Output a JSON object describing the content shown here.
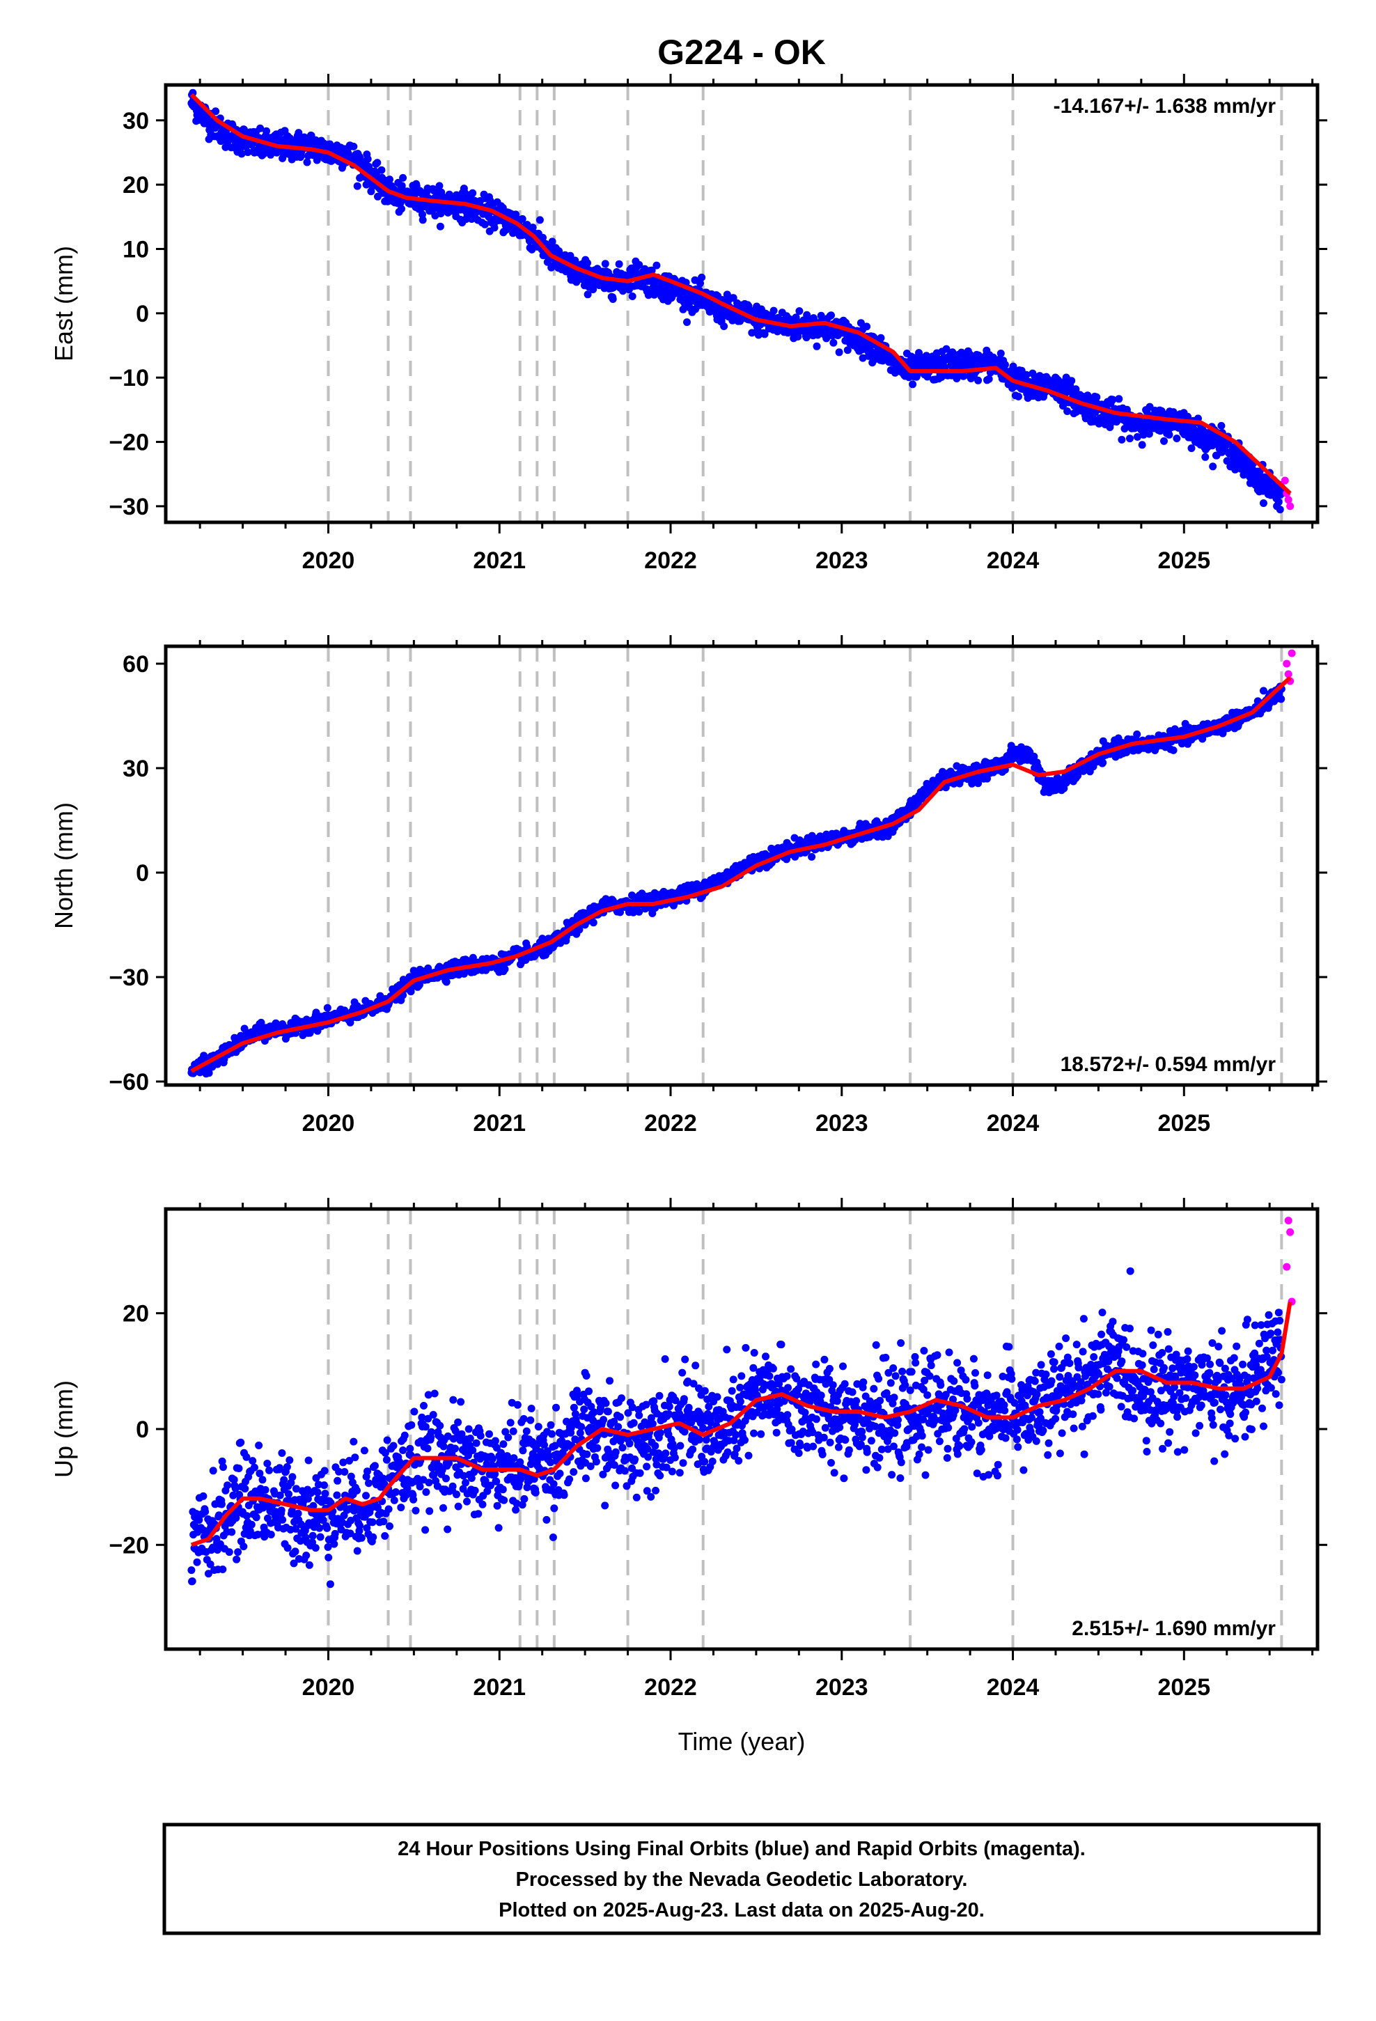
{
  "title": "G224 - OK",
  "xlabel": "Time (year)",
  "colors": {
    "final": "#0000ff",
    "rapid": "#ff00ff",
    "model": "#ff0000",
    "breaks": "#c0c0c0",
    "frame": "#000000"
  },
  "footer": {
    "line1": "24 Hour Positions Using Final Orbits (blue) and Rapid Orbits (magenta).",
    "line2": "Processed by the Nevada Geodetic Laboratory.",
    "line3": "Plotted on 2025-Aug-23. Last data on 2025-Aug-20."
  },
  "chart_data": [
    {
      "type": "scatter",
      "ylabel": "East (mm)",
      "rate": "-14.167+/- 1.638 mm/yr",
      "xlim": [
        2019.05,
        2025.78
      ],
      "ylim": [
        -32.5,
        35.5
      ],
      "yticks": [
        -30,
        -20,
        -10,
        0,
        10,
        20,
        30
      ],
      "xticks": [
        2020,
        2021,
        2022,
        2023,
        2024,
        2025
      ],
      "breaks": [
        2020.0,
        2020.35,
        2020.48,
        2021.12,
        2021.22,
        2021.32,
        2021.75,
        2022.19,
        2023.4,
        2024.0,
        2025.57
      ],
      "series": [
        {
          "name": "Final Orbits",
          "x": [
            2019.2,
            2019.3,
            2019.4,
            2019.5,
            2019.6,
            2019.7,
            2019.8,
            2019.9,
            2020.0,
            2020.1,
            2020.2,
            2020.3,
            2020.35,
            2020.4,
            2020.48,
            2020.6,
            2020.7,
            2020.8,
            2020.9,
            2021.0,
            2021.1,
            2021.2,
            2021.3,
            2021.4,
            2021.5,
            2021.6,
            2021.7,
            2021.75,
            2021.8,
            2021.9,
            2022.0,
            2022.1,
            2022.19,
            2022.3,
            2022.4,
            2022.5,
            2022.6,
            2022.7,
            2022.8,
            2022.9,
            2023.0,
            2023.1,
            2023.2,
            2023.3,
            2023.4,
            2023.5,
            2023.6,
            2023.7,
            2023.8,
            2023.9,
            2024.0,
            2024.1,
            2024.2,
            2024.3,
            2024.4,
            2024.5,
            2024.6,
            2024.7,
            2024.8,
            2024.9,
            2025.0,
            2025.1,
            2025.2,
            2025.3,
            2025.4,
            2025.5,
            2025.57
          ],
          "values": [
            33,
            30,
            28,
            27,
            26,
            26,
            26,
            26,
            25,
            25,
            23,
            20,
            19,
            18,
            18,
            17.5,
            17,
            17,
            16,
            15,
            14,
            12,
            9,
            7,
            6,
            5,
            5,
            5.5,
            6,
            5,
            4,
            3,
            2,
            0.5,
            0,
            -1,
            -1.5,
            -2,
            -2,
            -2,
            -3,
            -4,
            -5,
            -8,
            -9,
            -8.5,
            -8,
            -8,
            -8,
            -8,
            -10,
            -12,
            -11,
            -12,
            -14,
            -15,
            -16,
            -17,
            -17,
            -17,
            -17,
            -19,
            -20,
            -22,
            -25,
            -27,
            -28
          ]
        },
        {
          "name": "Rapid Orbits",
          "x": [
            2025.59,
            2025.6,
            2025.61,
            2025.62
          ],
          "values": [
            -26,
            -28,
            -29,
            -30
          ]
        },
        {
          "name": "Model",
          "x": [
            2019.2,
            2019.35,
            2019.5,
            2019.7,
            2019.9,
            2020.0,
            2020.15,
            2020.3,
            2020.35,
            2020.45,
            2020.6,
            2020.8,
            2020.95,
            2021.1,
            2021.2,
            2021.3,
            2021.45,
            2021.6,
            2021.75,
            2021.9,
            2022.0,
            2022.19,
            2022.3,
            2022.5,
            2022.7,
            2022.9,
            2023.1,
            2023.3,
            2023.4,
            2023.5,
            2023.7,
            2023.9,
            2024.0,
            2024.2,
            2024.4,
            2024.6,
            2024.9,
            2025.1,
            2025.3,
            2025.5,
            2025.62
          ],
          "values": [
            34,
            30,
            27.5,
            26,
            25.5,
            25,
            23,
            20,
            19,
            18,
            17.5,
            17,
            16,
            14,
            12,
            9,
            7,
            5.5,
            5,
            6,
            5,
            3,
            1.5,
            -1,
            -2,
            -1.5,
            -3,
            -6,
            -9,
            -9,
            -9,
            -8.5,
            -10.5,
            -12,
            -14,
            -15.5,
            -16.5,
            -17,
            -20,
            -25,
            -28
          ]
        }
      ]
    },
    {
      "type": "scatter",
      "ylabel": "North (mm)",
      "rate": "18.572+/- 0.594 mm/yr",
      "xlim": [
        2019.05,
        2025.78
      ],
      "ylim": [
        -61,
        65
      ],
      "yticks": [
        -60,
        -30,
        0,
        30,
        60
      ],
      "xticks": [
        2020,
        2021,
        2022,
        2023,
        2024,
        2025
      ],
      "breaks": [
        2020.0,
        2020.35,
        2020.48,
        2021.12,
        2021.22,
        2021.32,
        2021.75,
        2022.19,
        2023.4,
        2024.0,
        2025.57
      ],
      "series": [
        {
          "name": "Final Orbits",
          "x": [
            2019.2,
            2019.3,
            2019.4,
            2019.5,
            2019.6,
            2019.7,
            2019.8,
            2019.9,
            2020.0,
            2020.1,
            2020.2,
            2020.3,
            2020.4,
            2020.5,
            2020.6,
            2020.8,
            2021.0,
            2021.1,
            2021.2,
            2021.3,
            2021.4,
            2021.5,
            2021.6,
            2021.75,
            2021.9,
            2022.0,
            2022.1,
            2022.2,
            2022.3,
            2022.4,
            2022.5,
            2022.6,
            2022.8,
            2023.0,
            2023.2,
            2023.3,
            2023.4,
            2023.5,
            2023.6,
            2023.8,
            2023.95,
            2024.0,
            2024.1,
            2024.2,
            2024.3,
            2024.4,
            2024.5,
            2024.6,
            2024.8,
            2025.0,
            2025.2,
            2025.4,
            2025.57
          ],
          "values": [
            -57,
            -55,
            -52,
            -48,
            -46,
            -45,
            -45,
            -43,
            -42,
            -41,
            -40,
            -38,
            -35,
            -31,
            -29,
            -27,
            -26,
            -24,
            -23,
            -21,
            -17,
            -13,
            -10,
            -9,
            -8,
            -7,
            -6,
            -4,
            -2,
            1,
            3,
            5,
            8,
            10,
            12,
            14,
            18,
            24,
            27,
            29,
            31,
            34,
            34,
            24,
            26,
            30,
            33,
            36,
            37,
            39,
            42,
            46,
            52
          ]
        },
        {
          "name": "Rapid Orbits",
          "x": [
            2025.6,
            2025.61,
            2025.62,
            2025.63
          ],
          "values": [
            60,
            57,
            55,
            63
          ]
        },
        {
          "name": "Model",
          "x": [
            2019.2,
            2019.35,
            2019.5,
            2019.7,
            2019.9,
            2020.0,
            2020.2,
            2020.35,
            2020.5,
            2020.7,
            2020.95,
            2021.1,
            2021.3,
            2021.45,
            2021.6,
            2021.75,
            2021.9,
            2022.1,
            2022.3,
            2022.5,
            2022.7,
            2022.9,
            2023.1,
            2023.3,
            2023.45,
            2023.6,
            2023.8,
            2024.0,
            2024.15,
            2024.3,
            2024.5,
            2024.7,
            2025.0,
            2025.2,
            2025.4,
            2025.62
          ],
          "values": [
            -57,
            -53,
            -49,
            -46,
            -44,
            -43,
            -40,
            -37,
            -31,
            -28,
            -26,
            -24,
            -20,
            -15,
            -11,
            -9,
            -9,
            -7,
            -4,
            2,
            6,
            8,
            11,
            14,
            18,
            26,
            29,
            31,
            28,
            29,
            34,
            37,
            39,
            42,
            46,
            56
          ]
        }
      ]
    },
    {
      "type": "scatter",
      "ylabel": "Up (mm)",
      "rate": "2.515+/- 1.690 mm/yr",
      "xlim": [
        2019.05,
        2025.78
      ],
      "ylim": [
        -38,
        38
      ],
      "yticks": [
        -20,
        0,
        20
      ],
      "xticks": [
        2020,
        2021,
        2022,
        2023,
        2024,
        2025
      ],
      "breaks": [
        2020.0,
        2020.35,
        2020.48,
        2021.12,
        2021.22,
        2021.32,
        2021.75,
        2022.19,
        2023.4,
        2024.0,
        2025.57
      ],
      "series": [
        {
          "name": "Final Orbits",
          "x": [
            2019.2,
            2019.3,
            2019.4,
            2019.5,
            2019.6,
            2019.7,
            2019.8,
            2019.9,
            2020.0,
            2020.1,
            2020.2,
            2020.3,
            2020.4,
            2020.5,
            2020.6,
            2020.7,
            2020.8,
            2020.9,
            2021.0,
            2021.1,
            2021.2,
            2021.3,
            2021.4,
            2021.5,
            2021.6,
            2021.75,
            2021.9,
            2022.0,
            2022.1,
            2022.2,
            2022.3,
            2022.4,
            2022.5,
            2022.6,
            2022.7,
            2022.8,
            2022.9,
            2023.0,
            2023.1,
            2023.2,
            2023.3,
            2023.4,
            2023.5,
            2023.6,
            2023.7,
            2023.8,
            2023.9,
            2024.0,
            2024.1,
            2024.2,
            2024.3,
            2024.4,
            2024.5,
            2024.6,
            2024.7,
            2024.8,
            2024.9,
            2025.0,
            2025.1,
            2025.2,
            2025.3,
            2025.4,
            2025.5,
            2025.57
          ],
          "values": [
            -22,
            -18,
            -15,
            -12,
            -12,
            -13,
            -14,
            -15,
            -14,
            -13,
            -13,
            -11,
            -8,
            -6,
            -4,
            -5,
            -6,
            -7,
            -7,
            -6,
            -5,
            -6,
            -3,
            0,
            -1,
            -3,
            0,
            1,
            1,
            0,
            -1,
            2,
            5,
            6,
            4,
            3,
            3,
            3,
            3,
            2,
            1,
            2,
            4,
            4,
            3,
            2,
            2,
            3,
            3,
            4,
            6,
            8,
            10,
            11,
            9,
            7,
            7,
            8,
            7,
            6,
            6,
            8,
            12,
            14
          ]
        },
        {
          "name": "Rapid Orbits",
          "x": [
            2025.6,
            2025.61,
            2025.62,
            2025.63
          ],
          "values": [
            28,
            36,
            34,
            22
          ]
        },
        {
          "name": "Model",
          "x": [
            2019.2,
            2019.3,
            2019.4,
            2019.5,
            2019.6,
            2019.75,
            2019.9,
            2020.0,
            2020.1,
            2020.2,
            2020.3,
            2020.35,
            2020.5,
            2020.6,
            2020.75,
            2020.9,
            2021.0,
            2021.12,
            2021.22,
            2021.32,
            2021.45,
            2021.6,
            2021.75,
            2021.9,
            2022.05,
            2022.19,
            2022.35,
            2022.5,
            2022.65,
            2022.8,
            2022.95,
            2023.1,
            2023.25,
            2023.4,
            2023.55,
            2023.7,
            2023.85,
            2024.0,
            2024.15,
            2024.3,
            2024.45,
            2024.6,
            2024.75,
            2024.9,
            2025.05,
            2025.2,
            2025.35,
            2025.5,
            2025.57,
            2025.62
          ],
          "values": [
            -20,
            -19,
            -15,
            -12,
            -12,
            -13,
            -14,
            -14,
            -12,
            -13,
            -12,
            -10,
            -5,
            -5,
            -5,
            -7,
            -7,
            -7,
            -8,
            -7,
            -3,
            0,
            -1,
            0,
            1,
            -1,
            1,
            5,
            6,
            4,
            3,
            3,
            2,
            3,
            5,
            4,
            2,
            2,
            4,
            5,
            7,
            10,
            10,
            8,
            8,
            7,
            7,
            9,
            13,
            22
          ]
        }
      ]
    }
  ]
}
